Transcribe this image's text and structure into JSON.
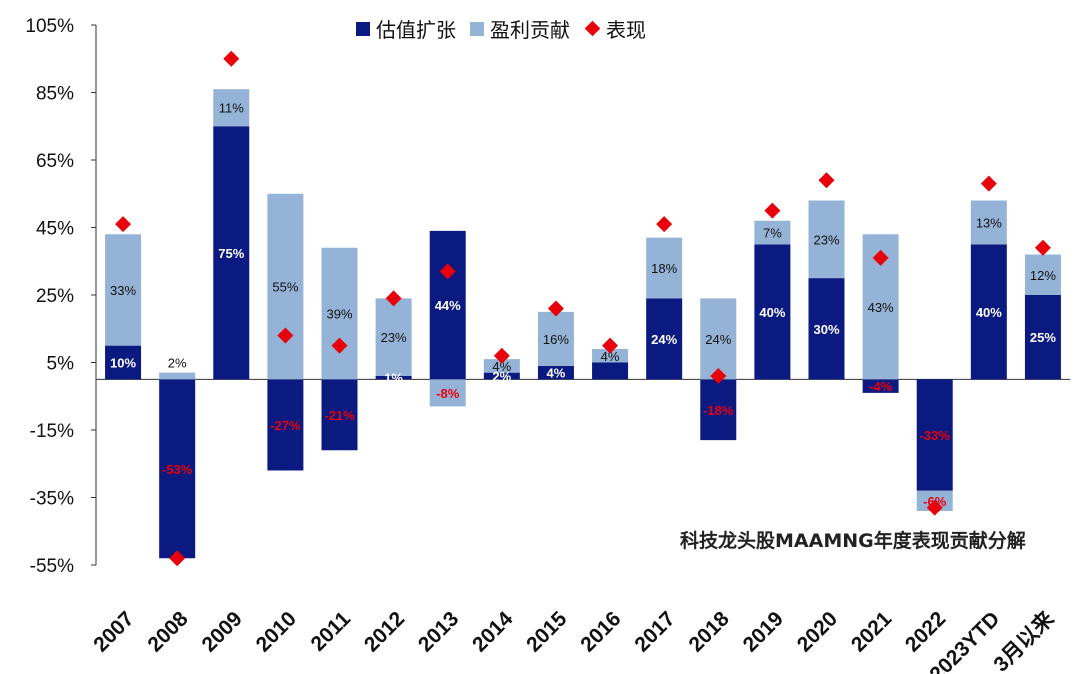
{
  "chart_data": {
    "type": "bar",
    "title": "科技龙头股MAAMNG年度表现贡献分解",
    "categories": [
      "2007",
      "2008",
      "2009",
      "2010",
      "2011",
      "2012",
      "2013",
      "2014",
      "2015",
      "2016",
      "2017",
      "2018",
      "2019",
      "2020",
      "2021",
      "2022",
      "2023YTD",
      "3月以来"
    ],
    "ylim": [
      -55,
      105
    ],
    "ytick_labels": [
      "105%",
      "85%",
      "65%",
      "45%",
      "25%",
      "5%",
      "-15%",
      "-35%",
      "-55%"
    ],
    "ytick_values": [
      105,
      85,
      65,
      45,
      25,
      5,
      -15,
      -35,
      -55
    ],
    "series": [
      {
        "name": "估值扩张",
        "color": "#0b1a80",
        "values": [
          10,
          -53,
          75,
          -27,
          -21,
          1,
          44,
          2,
          4,
          5,
          24,
          -18,
          40,
          30,
          -4,
          -33,
          40,
          25
        ],
        "labels": [
          "10%",
          "-53%",
          "75%",
          "-27%",
          "-21%",
          "1%",
          "44%",
          "2%",
          "4%",
          "",
          "24%",
          "-18%",
          "40%",
          "30%",
          "-4%",
          "-33%",
          "40%",
          "25%"
        ]
      },
      {
        "name": "盈利贡献",
        "color": "#95b3d7",
        "values": [
          33,
          2,
          11,
          55,
          39,
          23,
          -8,
          4,
          16,
          4,
          18,
          24,
          7,
          23,
          43,
          -6,
          13,
          12
        ],
        "labels": [
          "33%",
          "2%",
          "11%",
          "55%",
          "39%",
          "23%",
          "-8%",
          "4%",
          "16%",
          "4%",
          "18%",
          "24%",
          "7%",
          "23%",
          "43%",
          "-6%",
          "13%",
          "12%"
        ]
      },
      {
        "name": "表现",
        "color": "#e8000b",
        "type": "scatter",
        "values": [
          46,
          -53,
          95,
          13,
          10,
          24,
          32,
          7,
          21,
          10,
          46,
          1,
          50,
          59,
          36,
          -38,
          58,
          39
        ]
      }
    ],
    "legend_position": "top-center",
    "grid": false
  }
}
